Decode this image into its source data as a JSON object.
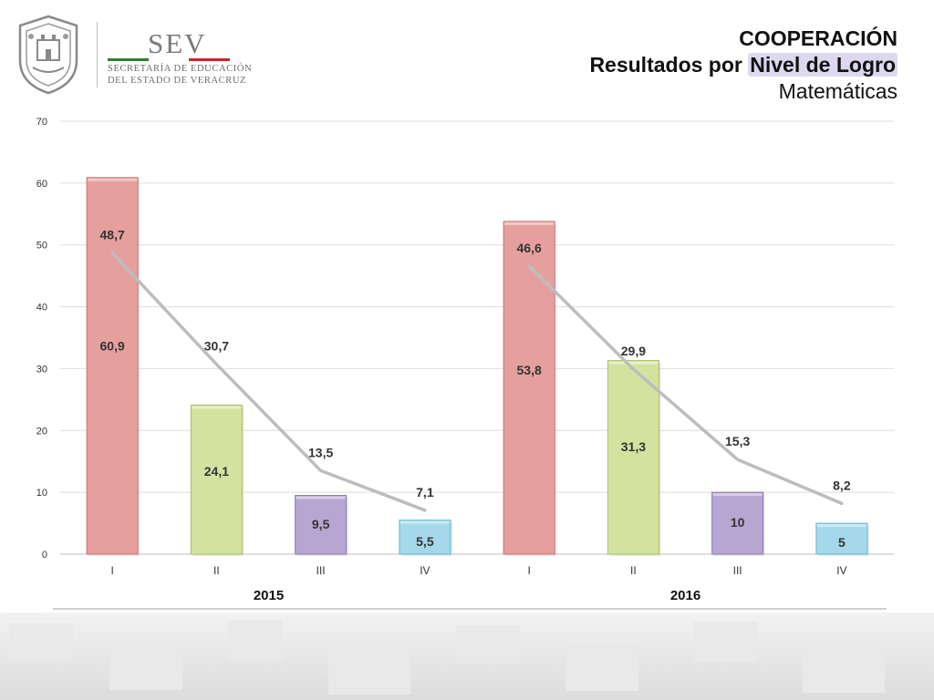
{
  "header": {
    "logo_brand": "SEV",
    "org_line_1": "SECRETARÍA DE EDUCACIÓN",
    "org_line_2": "DEL ESTADO DE VERACRUZ",
    "flag_colors": [
      "#2e7d32",
      "#ffffff",
      "#c62828"
    ],
    "title_line_1": "COOPERACIÓN",
    "title_line_2_prefix": "Resultados por ",
    "title_line_2_highlight": "Nivel de Logro",
    "subtitle": "Matemáticas"
  },
  "chart_data": {
    "type": "bar",
    "categories": [
      "I",
      "II",
      "III",
      "IV",
      "I",
      "II",
      "III",
      "IV"
    ],
    "groups": [
      {
        "label": "2015",
        "start": 0,
        "end": 3
      },
      {
        "label": "2016",
        "start": 4,
        "end": 7
      }
    ],
    "bar_values": [
      60.9,
      24.1,
      9.5,
      5.5,
      53.8,
      31.3,
      10,
      5
    ],
    "bar_labels": [
      "60,9",
      "24,1",
      "9,5",
      "5,5",
      "53,8",
      "31,3",
      "10",
      "5"
    ],
    "line_values": [
      48.7,
      30.7,
      13.5,
      7.1,
      46.6,
      29.9,
      15.3,
      8.2
    ],
    "line_labels": [
      "48,7",
      "30,7",
      "13,5",
      "7,1",
      "46,6",
      "29,9",
      "15,3",
      "8,2"
    ],
    "bar_colors": [
      "#e5a09e",
      "#d4e2a0",
      "#b8a6d2",
      "#a4d8ea",
      "#e5a09e",
      "#d4e2a0",
      "#b8a6d2",
      "#a4d8ea"
    ],
    "bar_stroke": [
      "#c77572",
      "#a9bd6a",
      "#8d78b3",
      "#6fb5cf",
      "#c77572",
      "#a9bd6a",
      "#8d78b3",
      "#6fb5cf"
    ],
    "line_color": "#bdbdbd",
    "ylim": [
      0,
      70
    ],
    "yticks": [
      0,
      10,
      20,
      30,
      40,
      50,
      60,
      70
    ],
    "grid": true,
    "xlabel": "",
    "ylabel": ""
  }
}
